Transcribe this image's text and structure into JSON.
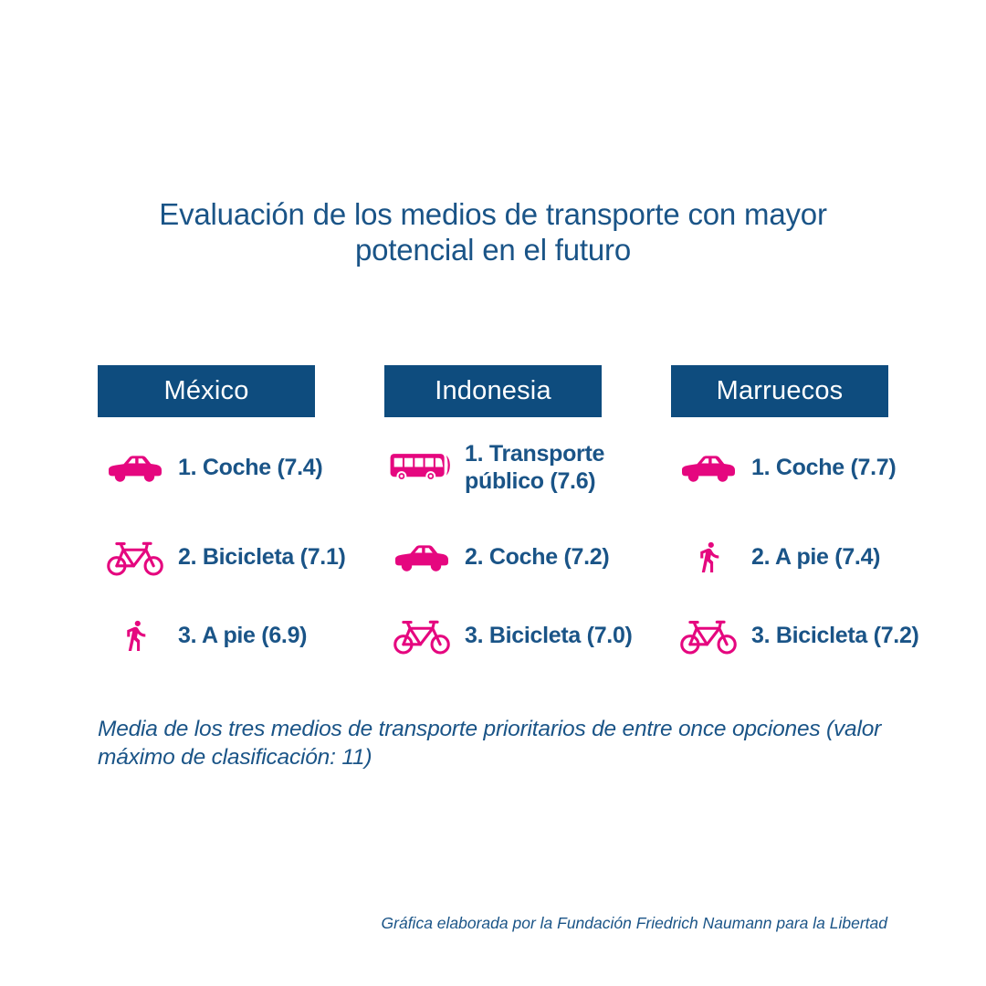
{
  "title": "Evaluación de los medios de transporte con mayor\npotencial en el futuro",
  "colors": {
    "navy-box": "#0E4C7E",
    "ink": "#1A5487",
    "magenta": "#E5077F",
    "bg": "#FFFFFF"
  },
  "columns": [
    {
      "country": "México",
      "items": [
        {
          "icon": "car-icon",
          "label": "1. Coche (7.4)"
        },
        {
          "icon": "bicycle-icon",
          "label": "2. Bicicleta (7.1)"
        },
        {
          "icon": "pedestrian-icon",
          "label": "3. A pie (6.9)"
        }
      ]
    },
    {
      "country": "Indonesia",
      "items": [
        {
          "icon": "bus-icon",
          "label": "1. Transporte\npúblico (7.6)"
        },
        {
          "icon": "car-icon",
          "label": "2. Coche (7.2)"
        },
        {
          "icon": "bicycle-icon",
          "label": "3. Bicicleta (7.0)"
        }
      ]
    },
    {
      "country": "Marruecos",
      "items": [
        {
          "icon": "car-icon",
          "label": "1. Coche (7.7)"
        },
        {
          "icon": "pedestrian-icon",
          "label": "2. A pie (7.4)"
        },
        {
          "icon": "bicycle-icon",
          "label": "3. Bicicleta (7.2)"
        }
      ]
    }
  ],
  "footnote": "Media de los tres medios de transporte prioritarios de entre once opciones (valor\nmáximo de clasificación: 11)",
  "attribution": "Gráfica elaborada por la Fundación Friedrich Naumann para la Libertad",
  "chart_data": {
    "type": "table",
    "title": "Evaluación de los medios de transporte con mayor potencial en el futuro",
    "note": "Media de los tres medios de transporte prioritarios de entre once opciones (valor máximo de clasificación: 11)",
    "value_max": 11,
    "groups": [
      {
        "country": "México",
        "rankings": [
          {
            "rank": 1,
            "mode": "Coche",
            "value": 7.4
          },
          {
            "rank": 2,
            "mode": "Bicicleta",
            "value": 7.1
          },
          {
            "rank": 3,
            "mode": "A pie",
            "value": 6.9
          }
        ]
      },
      {
        "country": "Indonesia",
        "rankings": [
          {
            "rank": 1,
            "mode": "Transporte público",
            "value": 7.6
          },
          {
            "rank": 2,
            "mode": "Coche",
            "value": 7.2
          },
          {
            "rank": 3,
            "mode": "Bicicleta",
            "value": 7.0
          }
        ]
      },
      {
        "country": "Marruecos",
        "rankings": [
          {
            "rank": 1,
            "mode": "Coche",
            "value": 7.7
          },
          {
            "rank": 2,
            "mode": "A pie",
            "value": 7.4
          },
          {
            "rank": 3,
            "mode": "Bicicleta",
            "value": 7.2
          }
        ]
      }
    ],
    "source": "Gráfica elaborada por la Fundación Friedrich Naumann para la Libertad"
  }
}
